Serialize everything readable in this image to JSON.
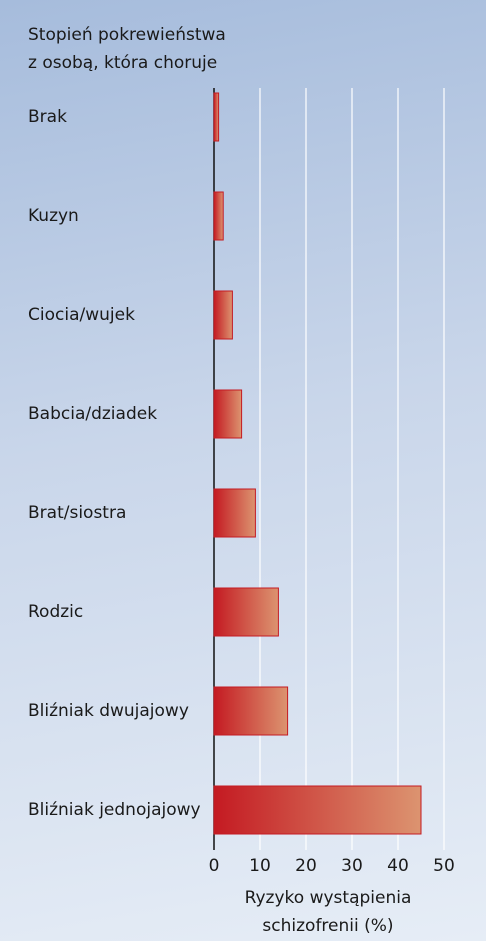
{
  "chart_data": {
    "type": "hbar",
    "ylabel": [
      "Stopień pokrewieństwa",
      "z osobą, która choruje"
    ],
    "xlabel": [
      "Ryzyko wystąpienia",
      "schizofrenii (%)"
    ],
    "categories": [
      "Brak",
      "Kuzyn",
      "Ciocia/wujek",
      "Babcia/dziadek",
      "Brat/siostra",
      "Rodzic",
      "Bliźniak dwujajowy",
      "Bliźniak jednojajowy"
    ],
    "values": [
      1,
      2,
      4,
      6,
      9,
      14,
      16,
      45
    ],
    "color": "#c41a22",
    "xlim": [
      0,
      50
    ],
    "xticks": [
      0,
      10,
      20,
      30,
      40,
      50
    ],
    "grid": true
  }
}
